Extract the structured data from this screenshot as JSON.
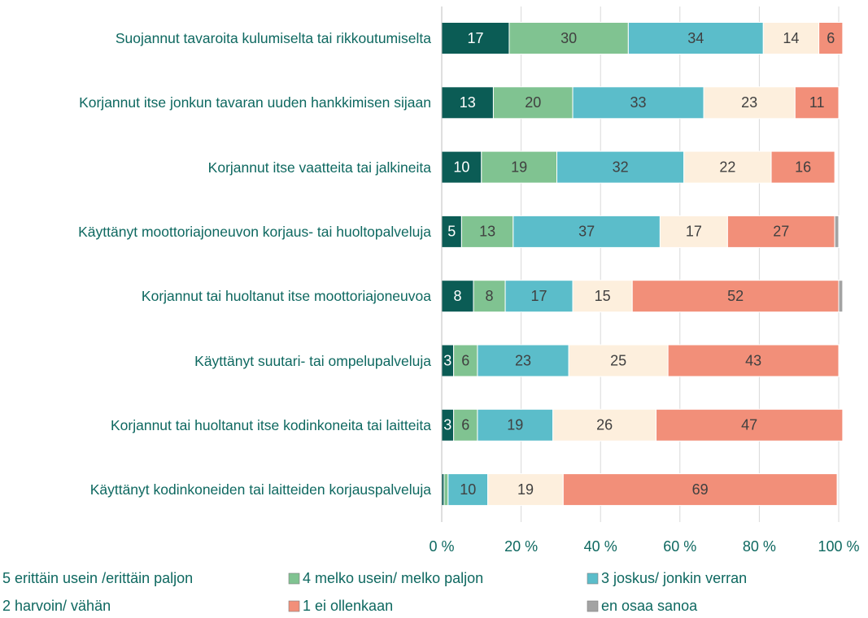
{
  "chart_data": {
    "type": "stacked_bar_horizontal",
    "categories": [
      "Suojannut tavaroita kulumiselta tai rikkoutumiselta",
      "Korjannut itse jonkun tavaran uuden hankkimisen sijaan",
      "Korjannut itse vaatteita tai jalkineita",
      "Käyttänyt moottoriajoneuvon korjaus- tai huoltopalveluja",
      "Korjannut tai huoltanut itse moottoriajoneuvoa",
      "Käyttänyt suutari- tai ompelupalveluja",
      "Korjannut tai huoltanut itse kodinkoneita tai laitteita",
      "Käyttänyt kodinkoneiden tai laitteiden korjauspalveluja"
    ],
    "series": [
      {
        "name": "5 erittäin usein /erittäin paljon",
        "color": "#0b5c55",
        "values": [
          17,
          13,
          10,
          5,
          8,
          3,
          3,
          0.6
        ],
        "value_labels": [
          "17",
          "13",
          "10",
          "5",
          "8",
          "3",
          "3",
          null
        ]
      },
      {
        "name": "4 melko usein/ melko paljon",
        "color": "#80c391",
        "values": [
          30,
          20,
          19,
          13,
          8,
          6,
          6,
          1
        ],
        "value_labels": [
          "30",
          "20",
          "19",
          "13",
          "8",
          "6",
          "6",
          null
        ]
      },
      {
        "name": "3 joskus/ jonkin verran",
        "color": "#5bbdca",
        "values": [
          34,
          33,
          32,
          37,
          17,
          23,
          19,
          10
        ],
        "value_labels": [
          "34",
          "33",
          "32",
          "37",
          "17",
          "23",
          "19",
          "10"
        ]
      },
      {
        "name": "2 harvoin/ vähän",
        "color": "#fdefdd",
        "values": [
          14,
          23,
          22,
          17,
          15,
          25,
          26,
          19
        ],
        "value_labels": [
          "14",
          "23",
          "22",
          "17",
          "15",
          "25",
          "26",
          "19"
        ]
      },
      {
        "name": "1 ei ollenkaan",
        "color": "#f28f79",
        "values": [
          6,
          11,
          16,
          27,
          52,
          43,
          47,
          69
        ],
        "value_labels": [
          "6",
          "11",
          "16",
          "27",
          "52",
          "43",
          "47",
          "69"
        ]
      },
      {
        "name": "en osaa sanoa",
        "color": "#a3a3a3",
        "values": [
          0,
          0,
          0,
          1,
          1,
          0,
          0,
          0
        ],
        "value_labels": [
          null,
          null,
          null,
          null,
          null,
          null,
          null,
          null
        ]
      }
    ],
    "xlim": [
      0,
      100
    ],
    "xticks": [
      {
        "value": 0,
        "label": "0 %"
      },
      {
        "value": 20,
        "label": "20 %"
      },
      {
        "value": 40,
        "label": "40 %"
      },
      {
        "value": 60,
        "label": "60 %"
      },
      {
        "value": 80,
        "label": "80 %"
      },
      {
        "value": 100,
        "label": "100 %"
      }
    ],
    "grid": true
  }
}
